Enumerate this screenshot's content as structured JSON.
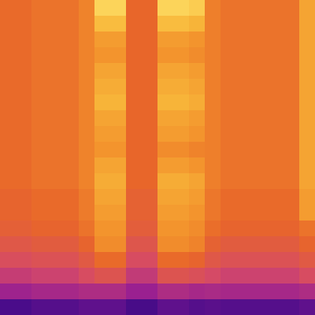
{
  "chart_data": {
    "type": "heatmap",
    "tick_labels": false,
    "zlim": [
      0,
      100
    ],
    "cells": [
      [
        66,
        66,
        68,
        68,
        68,
        72,
        92,
        92,
        65,
        65,
        92,
        92,
        90,
        71,
        68,
        68,
        68,
        68,
        68,
        80
      ],
      [
        66,
        66,
        68,
        68,
        68,
        72,
        86,
        86,
        65,
        65,
        86,
        86,
        84,
        71,
        68,
        68,
        68,
        68,
        68,
        80
      ],
      [
        66,
        66,
        68,
        68,
        68,
        72,
        78,
        78,
        65,
        65,
        78,
        78,
        76,
        71,
        68,
        68,
        68,
        68,
        68,
        80
      ],
      [
        66,
        66,
        68,
        68,
        68,
        72,
        76,
        76,
        65,
        65,
        76,
        76,
        74,
        71,
        68,
        68,
        68,
        68,
        68,
        80
      ],
      [
        66,
        66,
        68,
        68,
        68,
        72,
        80,
        80,
        65,
        65,
        80,
        80,
        78,
        71,
        68,
        68,
        68,
        68,
        68,
        80
      ],
      [
        66,
        66,
        68,
        68,
        68,
        72,
        82,
        82,
        65,
        65,
        82,
        82,
        80,
        71,
        68,
        68,
        68,
        68,
        68,
        80
      ],
      [
        66,
        66,
        68,
        68,
        68,
        72,
        84,
        84,
        65,
        65,
        84,
        84,
        82,
        71,
        68,
        68,
        68,
        68,
        68,
        80
      ],
      [
        66,
        66,
        68,
        68,
        68,
        72,
        80,
        80,
        65,
        65,
        80,
        80,
        78,
        71,
        68,
        68,
        68,
        68,
        68,
        80
      ],
      [
        66,
        66,
        68,
        68,
        68,
        72,
        78,
        78,
        65,
        65,
        78,
        78,
        76,
        71,
        68,
        68,
        68,
        68,
        68,
        80
      ],
      [
        66,
        66,
        68,
        68,
        68,
        72,
        76,
        76,
        65,
        65,
        74,
        74,
        72,
        71,
        68,
        68,
        68,
        68,
        68,
        80
      ],
      [
        66,
        66,
        68,
        68,
        68,
        72,
        80,
        80,
        65,
        65,
        78,
        78,
        76,
        71,
        68,
        68,
        68,
        68,
        68,
        80
      ],
      [
        66,
        66,
        68,
        68,
        68,
        72,
        82,
        82,
        65,
        65,
        82,
        82,
        80,
        71,
        68,
        68,
        68,
        68,
        68,
        80
      ],
      [
        64,
        64,
        66,
        66,
        66,
        70,
        80,
        80,
        63,
        63,
        80,
        80,
        78,
        69,
        66,
        66,
        66,
        66,
        66,
        78
      ],
      [
        64,
        64,
        66,
        66,
        66,
        70,
        78,
        78,
        63,
        63,
        78,
        78,
        76,
        69,
        66,
        66,
        66,
        66,
        66,
        78
      ],
      [
        62,
        62,
        64,
        64,
        64,
        68,
        76,
        76,
        61,
        61,
        76,
        76,
        74,
        67,
        64,
        64,
        64,
        64,
        64,
        68
      ],
      [
        58,
        58,
        60,
        60,
        60,
        64,
        74,
        74,
        57,
        57,
        74,
        74,
        72,
        63,
        60,
        60,
        60,
        60,
        60,
        64
      ],
      [
        53,
        53,
        55,
        55,
        55,
        59,
        66,
        66,
        52,
        52,
        66,
        66,
        64,
        58,
        55,
        55,
        55,
        55,
        55,
        59
      ],
      [
        46,
        46,
        48,
        48,
        48,
        52,
        56,
        56,
        45,
        45,
        56,
        56,
        54,
        51,
        48,
        48,
        48,
        48,
        48,
        52
      ],
      [
        36,
        36,
        38,
        38,
        38,
        40,
        40,
        40,
        35,
        35,
        40,
        40,
        38,
        39,
        38,
        38,
        38,
        38,
        38,
        40
      ],
      [
        20,
        20,
        22,
        22,
        22,
        24,
        24,
        24,
        19,
        19,
        24,
        24,
        22,
        23,
        22,
        22,
        22,
        22,
        22,
        24
      ]
    ]
  }
}
